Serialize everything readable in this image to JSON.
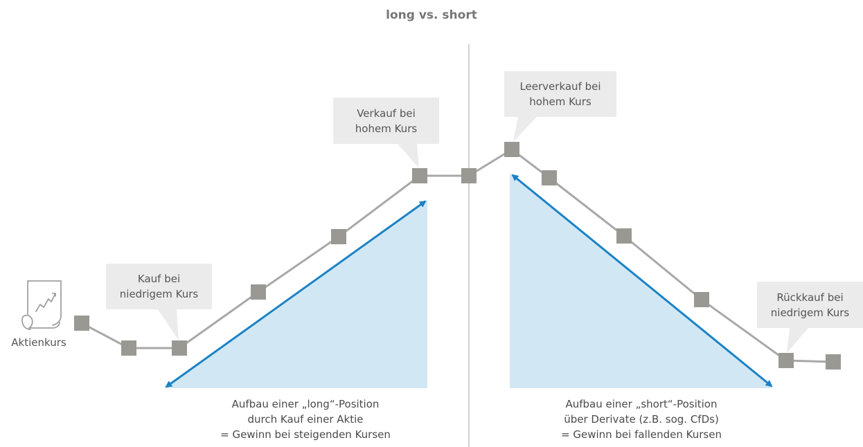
{
  "title": "long vs. short",
  "icon": {
    "name": "stock-chart-document-icon",
    "label": "Aktienkurs"
  },
  "callouts": {
    "buy_low": [
      "Kauf bei",
      "niedrigem Kurs"
    ],
    "sell_high": [
      "Verkauf bei",
      "hohem Kurs"
    ],
    "short_sell_high": [
      "Leerverkauf bei",
      "hohem Kurs"
    ],
    "buy_back_low": [
      "Rückkauf bei",
      "niedrigem Kurs"
    ]
  },
  "captions": {
    "long": [
      "Aufbau einer „long“-Position",
      "durch Kauf einer Aktie",
      "= Gewinn bei steigenden Kursen"
    ],
    "short": [
      "Aufbau einer „short“-Position",
      "über Derivate (z.B. sog. CfDs)",
      "= Gewinn bei fallenden Kursen"
    ]
  },
  "colors": {
    "line": "#a8a8a8",
    "node": "#999893",
    "arrow": "#1a82c6",
    "triangle": "#d2e7f4",
    "callout_bg": "#ebebeb",
    "divider": "#c2c2c2"
  }
}
